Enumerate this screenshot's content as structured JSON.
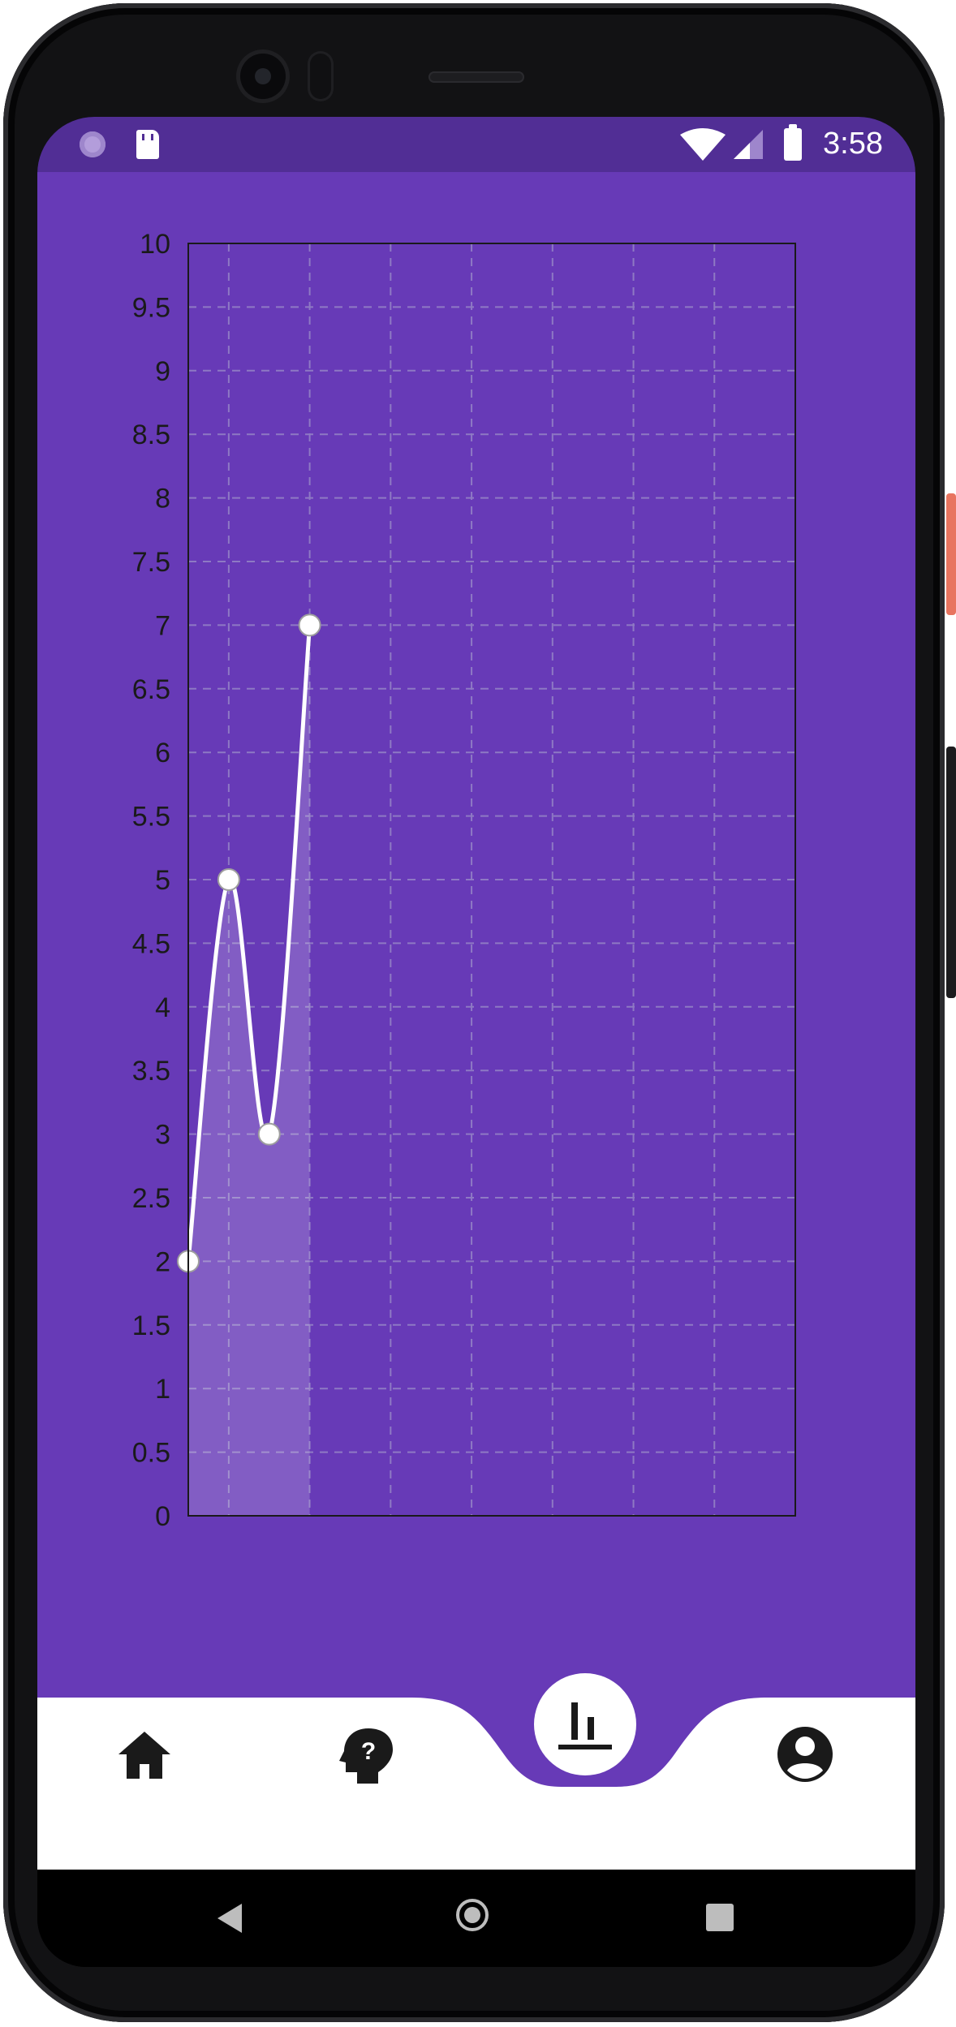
{
  "status_bar": {
    "time": "3:58",
    "icons": [
      "spinner-icon",
      "sd-card-icon",
      "wifi-icon",
      "signal-icon",
      "battery-icon"
    ]
  },
  "chart_data": {
    "type": "line",
    "x": [
      0,
      1,
      2,
      3
    ],
    "values": [
      2,
      5,
      3,
      7
    ],
    "ylim": [
      0,
      10
    ],
    "xlim": [
      0,
      15
    ],
    "y_ticks": [
      "0",
      "0.5",
      "1",
      "1.5",
      "2",
      "2.5",
      "3",
      "3.5",
      "4",
      "4.5",
      "5",
      "5.5",
      "6",
      "6.5",
      "7",
      "7.5",
      "8",
      "8.5",
      "9",
      "9.5",
      "10"
    ],
    "grid": true,
    "smooth": true,
    "area_fill": true,
    "colors": {
      "line": "#ffffff",
      "background": "#673ab7",
      "grid": "#8e79c4"
    }
  },
  "bottom_nav": {
    "items": [
      {
        "name": "home",
        "icon": "home-icon"
      },
      {
        "name": "help",
        "icon": "head-question-icon"
      },
      {
        "name": "stats",
        "icon": "bar-chart-icon",
        "selected": true
      },
      {
        "name": "profile",
        "icon": "account-circle-icon"
      }
    ]
  },
  "colors": {
    "primary": "#673ab7",
    "status_bar": "#512e95",
    "nav_background": "#ffffff"
  }
}
